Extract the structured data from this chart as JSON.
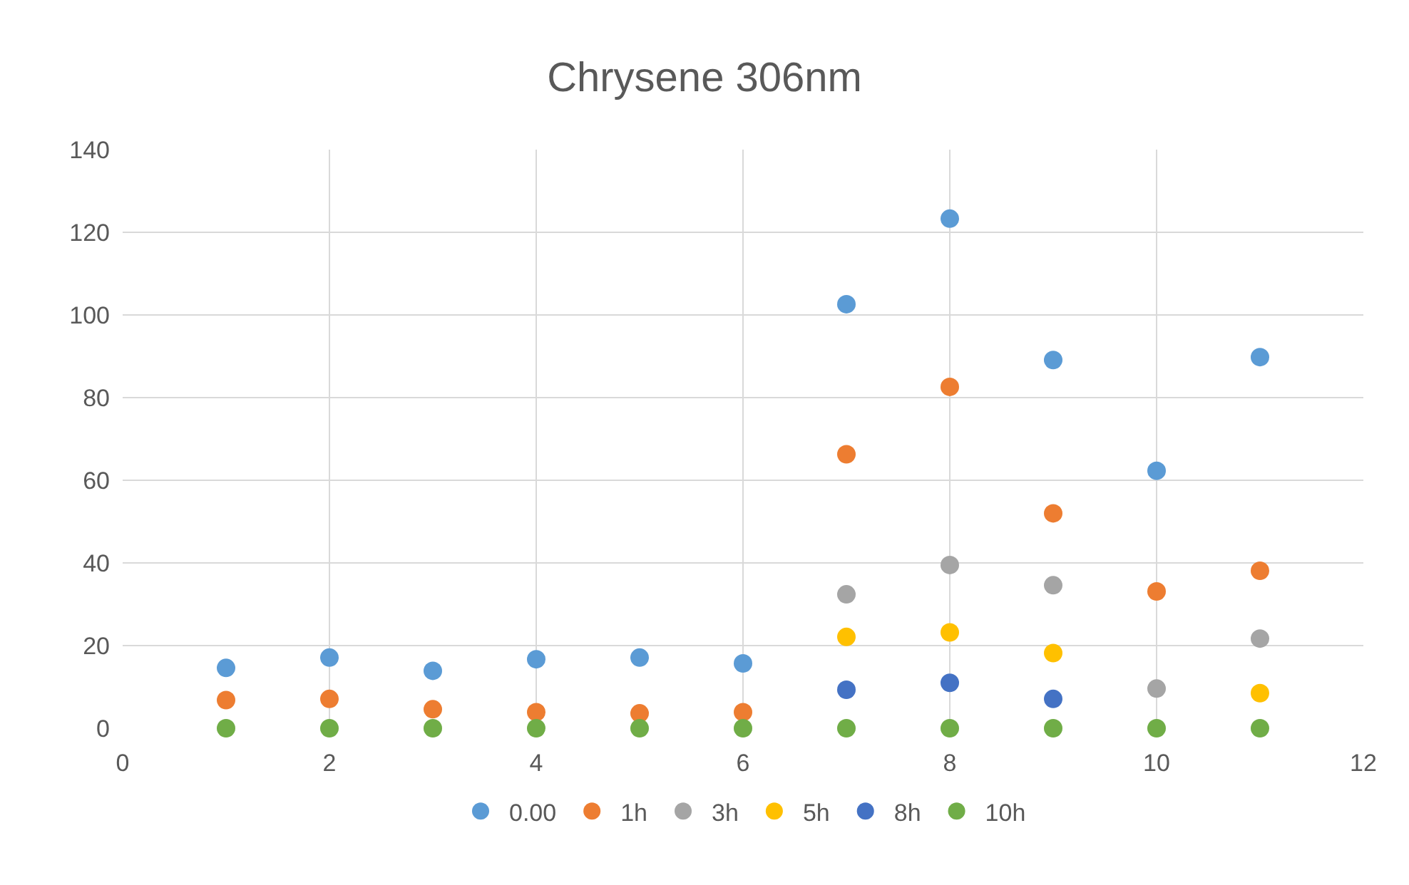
{
  "chart_data": {
    "type": "scatter",
    "title": "Chrysene 306nm",
    "x": [
      1,
      2,
      3,
      4,
      5,
      6,
      7,
      8,
      9,
      10,
      11
    ],
    "series": [
      {
        "name": "0.00",
        "color": "#5b9bd5",
        "values": [
          14.6,
          17.1,
          13.9,
          16.7,
          17.1,
          15.7,
          102.6,
          123.3,
          89.1,
          62.3,
          89.8
        ]
      },
      {
        "name": "1h",
        "color": "#ed7d31",
        "values": [
          6.8,
          7.1,
          4.6,
          3.9,
          3.6,
          3.9,
          66.3,
          82.6,
          52.0,
          33.1,
          38.1
        ]
      },
      {
        "name": "3h",
        "color": "#a5a5a5",
        "values": [
          null,
          null,
          null,
          null,
          null,
          null,
          32.4,
          39.5,
          34.6,
          9.6,
          21.7
        ]
      },
      {
        "name": "5h",
        "color": "#ffc000",
        "values": [
          null,
          null,
          null,
          null,
          null,
          null,
          22.1,
          23.2,
          18.2,
          null,
          8.5
        ]
      },
      {
        "name": "8h",
        "color": "#4472c4",
        "values": [
          null,
          null,
          null,
          null,
          null,
          null,
          9.3,
          11.0,
          7.1,
          null,
          null
        ]
      },
      {
        "name": "10h",
        "color": "#70ad47",
        "values": [
          0,
          0,
          0,
          0,
          0,
          0,
          0,
          0,
          0,
          0,
          0
        ]
      }
    ],
    "xlim": [
      0,
      12
    ],
    "xticks": [
      0,
      2,
      4,
      6,
      8,
      10,
      12
    ],
    "ylim": [
      0,
      140
    ],
    "yticks": [
      0,
      20,
      40,
      60,
      80,
      100,
      120,
      140
    ],
    "grid": true,
    "legend": "bottom",
    "marker": "circle"
  }
}
